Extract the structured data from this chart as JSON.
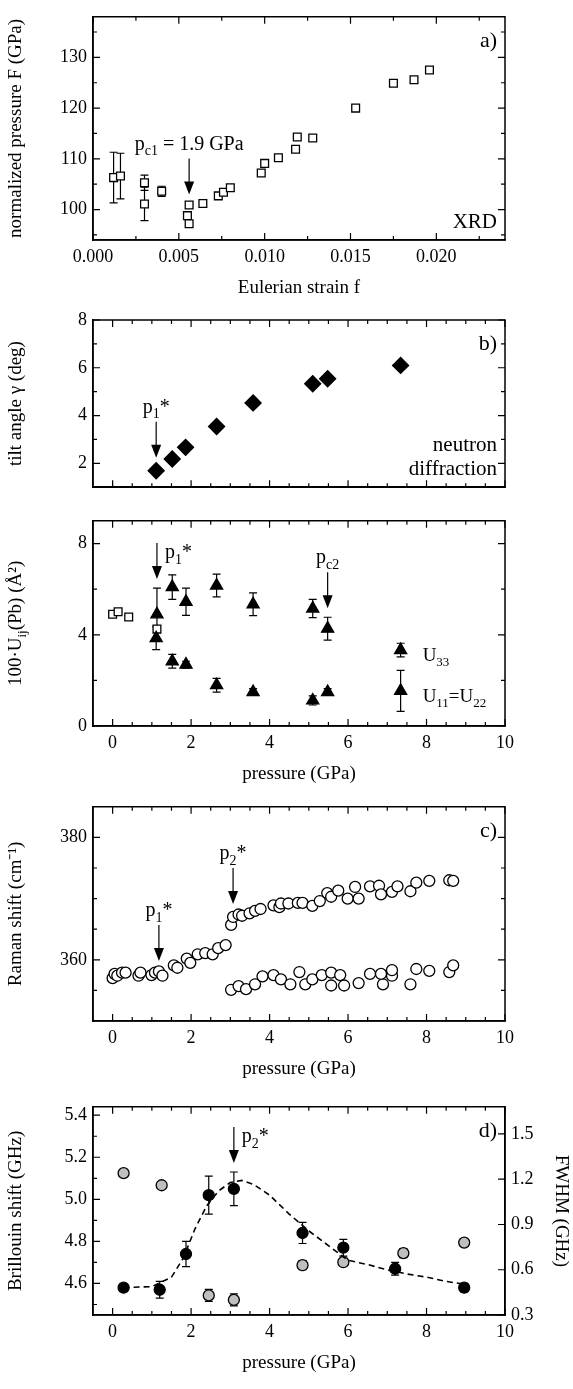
{
  "chart_data": [
    {
      "type": "scatter",
      "xlabel": "Eulerian strain f",
      "ylabel": "normalized pressure F (GPa)",
      "xlim": [
        0,
        0.024
      ],
      "ylim": [
        94,
        138
      ],
      "xticks": [
        {
          "value": 0,
          "label": "0.000"
        },
        {
          "value": 0.0025,
          "label": null
        },
        {
          "value": 0.005,
          "label": "0.005"
        },
        {
          "value": 0.0075,
          "label": null
        },
        {
          "value": 0.01,
          "label": "0.010"
        },
        {
          "value": 0.0125,
          "label": null
        },
        {
          "value": 0.015,
          "label": "0.015"
        },
        {
          "value": 0.0175,
          "label": null
        },
        {
          "value": 0.02,
          "label": "0.020"
        },
        {
          "value": 0.0225,
          "label": null
        }
      ],
      "yticks": [
        {
          "value": 95,
          "label": null
        },
        100,
        {
          "value": 105,
          "label": null
        },
        110,
        {
          "value": 115,
          "label": null
        },
        120,
        {
          "value": 125,
          "label": null
        },
        130,
        {
          "value": 135,
          "label": null
        }
      ],
      "series": [
        {
          "color": "#ffffff",
          "marker": "square",
          "x": [
            0.0012,
            0.0016,
            0.003,
            0.003,
            0.004,
            0.0056,
            0.0055,
            0.0056,
            0.0064,
            0.0073,
            0.0076,
            0.008,
            0.0098,
            0.01,
            0.0108,
            0.0118,
            0.0119,
            0.0128,
            0.0153,
            0.0175,
            0.0187,
            0.0196
          ],
          "values": [
            106.3,
            106.6,
            105.3,
            101.1,
            103.6,
            100.9,
            98.8,
            97.2,
            101.2,
            102.7,
            103.4,
            104.3,
            107.2,
            109.1,
            110.2,
            111.9,
            114.3,
            114.1,
            120.0,
            124.9,
            125.6,
            127.5
          ],
          "errors": [
            5,
            4.5,
            1.5,
            3.3,
            1,
            null,
            null,
            null,
            null,
            null,
            null,
            null,
            null,
            null,
            null,
            null,
            null,
            null,
            null,
            null,
            null,
            null
          ]
        }
      ],
      "annotations": [
        "a)",
        "XRD",
        {
          "text": "p$_{c1}$ = 1.9 GPa",
          "x": 0.0056,
          "y": 100.9
        }
      ]
    },
    {
      "type": "scatter",
      "ylabel": "tilt angle γ (deg)",
      "xlim": [
        -0.5,
        10
      ],
      "ylim": [
        1,
        8
      ],
      "tick_labels": "y",
      "xticks": [
        0,
        {
          "value": 0.5,
          "label": null
        },
        {
          "value": 1,
          "label": null
        },
        {
          "value": 1.5,
          "label": null
        },
        2,
        {
          "value": 2.5,
          "label": null
        },
        {
          "value": 3,
          "label": null
        },
        {
          "value": 3.5,
          "label": null
        },
        4,
        {
          "value": 4.5,
          "label": null
        },
        {
          "value": 5,
          "label": null
        },
        {
          "value": 5.5,
          "label": null
        },
        6,
        {
          "value": 6.5,
          "label": null
        },
        {
          "value": 7,
          "label": null
        },
        {
          "value": 7.5,
          "label": null
        },
        8,
        {
          "value": 8.5,
          "label": null
        },
        {
          "value": 9,
          "label": null
        },
        {
          "value": 9.5,
          "label": null
        },
        10
      ],
      "yticks": [
        {
          "value": 1,
          "label": null
        },
        2,
        {
          "value": 3,
          "label": null
        },
        4,
        {
          "value": 5,
          "label": null
        },
        6,
        {
          "value": 7,
          "label": null
        },
        8
      ],
      "series": [
        {
          "color": "#000000",
          "marker": "diamond",
          "x": [
            1.11,
            1.52,
            1.86,
            2.65,
            3.58,
            5.1,
            5.48,
            7.34
          ],
          "values": [
            1.69,
            2.18,
            2.67,
            3.54,
            4.53,
            5.33,
            5.54,
            6.1
          ]
        }
      ],
      "annotations": [
        "b)",
        "neutron diffraction",
        {
          "text": "p$_{1}$*",
          "x": 1.11,
          "y": 1.69
        }
      ]
    },
    {
      "type": "scatter",
      "xlabel": "pressure (GPa)",
      "ylabel": "100·U$_{ij}$(Pb) (Å²)",
      "xlim": [
        -0.5,
        10
      ],
      "ylim": [
        0,
        9
      ],
      "xticks": [
        0,
        {
          "value": 0.5,
          "label": null
        },
        {
          "value": 1,
          "label": null
        },
        {
          "value": 1.5,
          "label": null
        },
        2,
        {
          "value": 2.5,
          "label": null
        },
        {
          "value": 3,
          "label": null
        },
        {
          "value": 3.5,
          "label": null
        },
        4,
        {
          "value": 4.5,
          "label": null
        },
        {
          "value": 5,
          "label": null
        },
        {
          "value": 5.5,
          "label": null
        },
        6,
        {
          "value": 6.5,
          "label": null
        },
        {
          "value": 7,
          "label": null
        },
        {
          "value": 7.5,
          "label": null
        },
        8,
        {
          "value": 8.5,
          "label": null
        },
        {
          "value": 9,
          "label": null
        },
        {
          "value": 9.5,
          "label": null
        },
        10
      ],
      "yticks": [
        0,
        {
          "value": 2,
          "label": null
        },
        4,
        {
          "value": 6,
          "label": null
        },
        8
      ],
      "series": [
        {
          "name": "U$_{33}$",
          "color": "#000000",
          "marker": "triangle",
          "x": [
            1.13,
            1.52,
            1.87,
            2.65,
            3.58,
            5.1,
            5.48,
            7.34
          ],
          "values": [
            4.9,
            6.09,
            5.45,
            6.16,
            5.34,
            5.15,
            4.27,
            3.33
          ],
          "errors": [
            1.15,
            0.54,
            0.6,
            0.5,
            0.5,
            0.4,
            0.5,
            0.3
          ]
        },
        {
          "name": "U$_{11}$=U$_{22}$",
          "color": "#000000",
          "marker": "triangle",
          "x": [
            1.11,
            1.52,
            1.87,
            2.65,
            3.58,
            5.1,
            5.48,
            7.34
          ],
          "values": [
            3.85,
            2.84,
            2.69,
            1.79,
            1.49,
            1.12,
            1.49,
            1.54
          ],
          "errors": [
            0.5,
            0.3,
            0.15,
            0.3,
            0.15,
            0.2,
            0.15,
            0.9
          ]
        },
        {
          "color": "#ffffff",
          "marker": "square",
          "x": [
            0,
            0.14,
            0.41,
            1.13
          ],
          "values": [
            4.9,
            5.01,
            4.78,
            4.25
          ]
        }
      ],
      "annotations": [
        {
          "text": "p$_{1}$*",
          "x": 1.13,
          "y": 4.9
        },
        {
          "text": "p$_{c2}$",
          "x": 5.48,
          "y": 4.27
        }
      ]
    },
    {
      "type": "scatter",
      "xlabel": "pressure (GPa)",
      "ylabel": "Raman shift (cm⁻¹)",
      "xlim": [
        -0.5,
        10
      ],
      "ylim": [
        350,
        385
      ],
      "xticks": [
        0,
        {
          "value": 0.5,
          "label": null
        },
        {
          "value": 1,
          "label": null
        },
        {
          "value": 1.5,
          "label": null
        },
        2,
        {
          "value": 2.5,
          "label": null
        },
        {
          "value": 3,
          "label": null
        },
        {
          "value": 3.5,
          "label": null
        },
        4,
        {
          "value": 4.5,
          "label": null
        },
        {
          "value": 5,
          "label": null
        },
        {
          "value": 5.5,
          "label": null
        },
        6,
        {
          "value": 6.5,
          "label": null
        },
        {
          "value": 7,
          "label": null
        },
        {
          "value": 7.5,
          "label": null
        },
        8,
        {
          "value": 8.5,
          "label": null
        },
        {
          "value": 9,
          "label": null
        },
        {
          "value": 9.5,
          "label": null
        },
        10
      ],
      "yticks": [
        {
          "value": 355,
          "label": null
        },
        360,
        {
          "value": 365,
          "label": null
        },
        {
          "value": 370,
          "label": null
        },
        {
          "value": 375,
          "label": null
        },
        380
      ],
      "series": [
        {
          "color": "#ffffff",
          "marker": "circle",
          "x": [
            0,
            0.05,
            0.12,
            0.24,
            0.33,
            0.66,
            0.71,
            0.99,
            1.08,
            1.18,
            1.27,
            1.56,
            1.65,
            1.89,
            1.98,
            2.17,
            2.36,
            2.55,
            2.69,
            2.88,
            3.02,
            3.07,
            3.21,
            3.3,
            3.49,
            3.63,
            3.77,
            4.1,
            4.25,
            4.29,
            4.48,
            4.72,
            4.84,
            5.09,
            5.28,
            5.47,
            5.57,
            5.75,
            5.99,
            6.18,
            6.27,
            6.56,
            6.79,
            6.84,
            7.12,
            7.26,
            7.59,
            7.74,
            8.07,
            8.58,
            8.68,
            3.02,
            3.21,
            3.4,
            3.63,
            3.82,
            4.1,
            4.29,
            4.53,
            4.76,
            4.91,
            5.09,
            5.33,
            5.57,
            5.57,
            5.8,
            5.9,
            6.27,
            6.56,
            6.89,
            6.84,
            7.12,
            7.12,
            7.59,
            7.74,
            8.07,
            8.58,
            8.68
          ],
          "values": [
            357.0,
            357.7,
            357.4,
            357.9,
            357.9,
            357.4,
            357.9,
            357.5,
            357.9,
            358.1,
            357.4,
            359.1,
            358.7,
            360.2,
            359.5,
            360.9,
            361.1,
            360.9,
            361.9,
            362.4,
            365.7,
            367.0,
            367.4,
            367.2,
            367.6,
            368.0,
            368.3,
            368.9,
            368.6,
            369.2,
            369.2,
            369.3,
            369.3,
            368.8,
            369.6,
            370.9,
            370.3,
            371.3,
            370.0,
            371.9,
            370.0,
            372.0,
            372.1,
            370.7,
            371.1,
            372.0,
            371.2,
            372.6,
            372.9,
            373.0,
            372.9,
            355.1,
            355.7,
            355.2,
            356.0,
            357.3,
            357.5,
            356.8,
            356.0,
            358.0,
            356.0,
            356.8,
            357.5,
            357.9,
            355.8,
            357.5,
            355.8,
            356.2,
            357.7,
            356.0,
            357.7,
            357.4,
            358.3,
            356.0,
            358.5,
            358.2,
            358.0,
            359.1
          ]
        }
      ],
      "annotations": [
        "c)",
        {
          "text": "p$_{1}$*",
          "x": 1.18,
          "y": 358.1
        },
        {
          "text": "p$_{2}$*",
          "x": 3.07,
          "y": 367.0
        }
      ]
    },
    {
      "type": "scatter",
      "xlabel": "pressure (GPa)",
      "ylabel": "Brillouin shift (GHz)",
      "y2label": "FWHM (GHz)",
      "xlim": [
        -0.5,
        10
      ],
      "ylim": [
        4.45,
        5.44
      ],
      "y2lim": [
        0.3,
        1.68
      ],
      "xticks": [
        0,
        {
          "value": 0.5,
          "label": null
        },
        {
          "value": 1,
          "label": null
        },
        {
          "value": 1.5,
          "label": null
        },
        2,
        {
          "value": 2.5,
          "label": null
        },
        {
          "value": 3,
          "label": null
        },
        {
          "value": 3.5,
          "label": null
        },
        4,
        {
          "value": 4.5,
          "label": null
        },
        {
          "value": 5,
          "label": null
        },
        {
          "value": 5.5,
          "label": null
        },
        6,
        {
          "value": 6.5,
          "label": null
        },
        {
          "value": 7,
          "label": null
        },
        {
          "value": 7.5,
          "label": null
        },
        8,
        {
          "value": 8.5,
          "label": null
        },
        {
          "value": 9,
          "label": null
        },
        {
          "value": 9.5,
          "label": null
        },
        10
      ],
      "yticks": [
        {
          "value": 4.5,
          "label": null
        },
        4.6,
        {
          "value": 4.7,
          "label": null
        },
        4.8,
        {
          "value": 4.9,
          "label": null
        },
        {
          "value": 5,
          "label": "5.0"
        },
        {
          "value": 5.1,
          "label": null
        },
        5.2,
        {
          "value": 5.3,
          "label": null
        },
        5.4
      ],
      "y2ticks": [
        0.3,
        0.6,
        0.9,
        1.2,
        1.5
      ],
      "series": [
        {
          "type": "line",
          "color": "#000000",
          "marker": "none",
          "line_style": "dashed",
          "x": [
            0.28,
            1.0,
            1.5,
            1.8,
            2.1,
            2.4,
            2.7,
            3.0,
            3.3,
            3.6,
            4.0,
            4.5,
            5.0,
            5.5,
            6.0,
            6.5,
            7.0,
            7.5,
            8.0,
            8.5,
            9.0
          ],
          "values": [
            4.58,
            4.585,
            4.63,
            4.72,
            4.86,
            4.97,
            5.04,
            5.08,
            5.09,
            5.07,
            5.02,
            4.93,
            4.85,
            4.78,
            4.71,
            4.69,
            4.665,
            4.645,
            4.63,
            4.61,
            4.595
          ]
        },
        {
          "color": "#000000",
          "marker": "circle",
          "x": [
            0.28,
            1.2,
            1.87,
            2.45,
            3.09,
            4.84,
            5.88,
            7.2,
            8.96
          ],
          "values": [
            4.58,
            4.57,
            4.74,
            5.02,
            5.05,
            4.84,
            4.77,
            4.67,
            4.58
          ],
          "errors": [
            null,
            0.04,
            0.06,
            0.09,
            0.08,
            0.05,
            0.04,
            0.03,
            0.02
          ]
        },
        {
          "axis": "y2",
          "color": "#bfbfbf",
          "marker": "circle",
          "x": [
            0.28,
            1.25,
            2.45,
            3.09,
            4.84,
            5.88,
            7.41,
            8.96
          ],
          "values": [
            1.24,
            1.16,
            0.43,
            0.4,
            0.63,
            0.65,
            0.71,
            0.78
          ],
          "errors": [
            null,
            null,
            0.04,
            0.04,
            0.03,
            null,
            0.03,
            null
          ]
        }
      ],
      "annotations": [
        "d)",
        {
          "text": "p$_{2}$*",
          "x": 3.09,
          "y": 5.05
        }
      ]
    }
  ]
}
